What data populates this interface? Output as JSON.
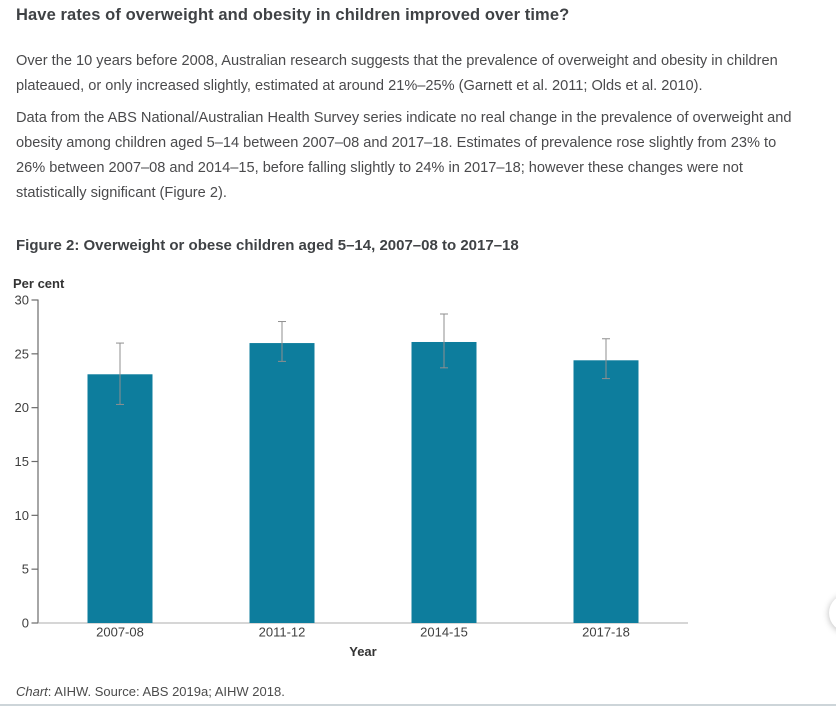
{
  "heading": "Have rates of overweight and obesity in children improved over time?",
  "paragraphs": [
    "Over the 10 years before 2008, Australian research suggests that the prevalence of overweight and obesity in children\nplateaued, or only increased slightly, estimated at around 21%–25% (Garnett et al. 2011; Olds et al. 2010).",
    "Data from the ABS National/Australian Health Survey series indicate no real change in the prevalence of overweight and\nobesity among children aged 5–14 between 2007–08 and 2017–18. Estimates of prevalence rose slightly from 23% to\n26% between 2007–08 and 2014–15, before falling slightly to 24% in 2017–18; however these changes were not\nstatistically significant (Figure 2)."
  ],
  "chart_data": {
    "type": "bar",
    "title": "Figure 2: Overweight or obese children aged 5–14, 2007–08 to 2017–18",
    "ylabel": "Per cent",
    "xlabel": "Year",
    "categories": [
      "2007-08",
      "2011-12",
      "2014-15",
      "2017-18"
    ],
    "values": [
      23.1,
      26.0,
      26.1,
      24.4
    ],
    "error_low": [
      20.3,
      24.3,
      23.7,
      22.7
    ],
    "error_high": [
      26.0,
      28.0,
      28.7,
      26.4
    ],
    "ylim": [
      0,
      30
    ],
    "yticks": [
      0,
      5,
      10,
      15,
      20,
      25,
      30
    ],
    "grid": false,
    "legend_position": "none",
    "bar_color": "#0d7d9d",
    "error_bar_color": "#8f8f8f",
    "y_axis_color": "#6b6b6b",
    "x_axis_color": "#aeaeae"
  },
  "source": {
    "prefix": "Chart",
    "rest": ": AIHW. Source: ABS 2019a; AIHW 2018."
  }
}
